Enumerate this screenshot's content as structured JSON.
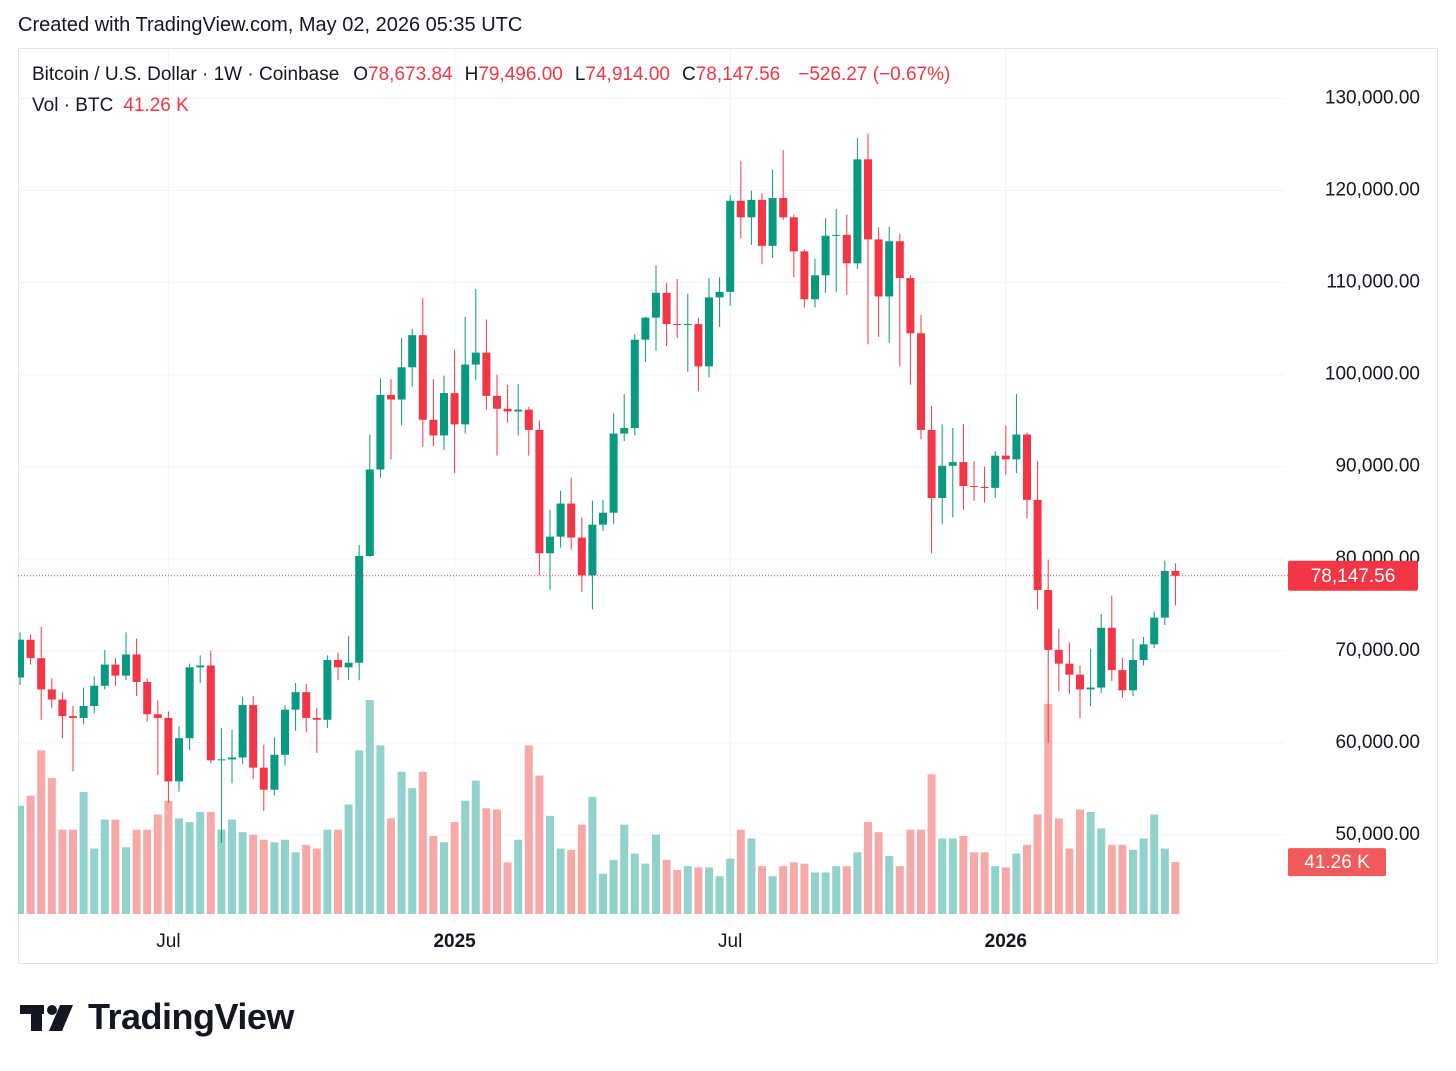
{
  "created_note": "Created with TradingView.com, May 02, 2026 05:35 UTC",
  "chart_data": {
    "type": "candlestick",
    "symbol": "Bitcoin / U.S. Dollar · 1W · Coinbase",
    "ohlc_labels": [
      {
        "prefix": "O",
        "label": "78,673.84"
      },
      {
        "prefix": "H",
        "label": "79,496.00"
      },
      {
        "prefix": "L",
        "label": "74,914.00"
      },
      {
        "prefix": "C",
        "label": "78,147.56"
      }
    ],
    "change_label": "−526.27 (−0.67%)",
    "volume_title": "Vol · BTC",
    "volume_label": "41.26 K",
    "price_label": "78,147.56",
    "categories": [
      null,
      null,
      null,
      null,
      null,
      null,
      null,
      null,
      null,
      null,
      null,
      null,
      null,
      null,
      "Jul",
      null,
      null,
      null,
      null,
      null,
      null,
      null,
      null,
      null,
      null,
      null,
      null,
      null,
      null,
      null,
      null,
      null,
      null,
      null,
      null,
      null,
      null,
      null,
      null,
      null,
      null,
      "2025",
      null,
      null,
      null,
      null,
      null,
      null,
      null,
      null,
      null,
      null,
      null,
      null,
      null,
      null,
      null,
      null,
      null,
      null,
      null,
      null,
      null,
      null,
      null,
      null,
      null,
      "Jul",
      null,
      null,
      null,
      null,
      null,
      null,
      null,
      null,
      null,
      null,
      null,
      null,
      null,
      null,
      null,
      null,
      null,
      null,
      null,
      null,
      null,
      null,
      null,
      null,
      null,
      "2026",
      null,
      null,
      null,
      null,
      null,
      null,
      null,
      null,
      null,
      null,
      null,
      null,
      null,
      null,
      null,
      null
    ],
    "open": [
      67100,
      71200,
      69200,
      65800,
      64700,
      62900,
      62700,
      64000,
      66200,
      68500,
      67300,
      69600,
      66600,
      63100,
      62700,
      55800,
      60500,
      68200,
      68400,
      58100,
      58200,
      58400,
      64100,
      57300,
      54900,
      58700,
      63600,
      65500,
      62700,
      62500,
      69000,
      68200,
      68700,
      80300,
      89700,
      97800,
      97300,
      100800,
      104300,
      95100,
      93400,
      98000,
      94600,
      101100,
      102400,
      97700,
      96300,
      96000,
      96200,
      94000,
      80600,
      82400,
      86000,
      82300,
      78200,
      83700,
      85000,
      93600,
      94200,
      103800,
      106200,
      108900,
      105500,
      105400,
      105500,
      100900,
      108400,
      109000,
      118900,
      117100,
      119000,
      114000,
      119200,
      117100,
      113400,
      108200,
      110800,
      115100,
      115200,
      112100,
      123400,
      114700,
      108500,
      114500,
      110500,
      104500,
      94000,
      86600,
      90100,
      90500,
      87900,
      87800,
      87700,
      91200,
      90800,
      93500,
      86400,
      76600,
      70100,
      68600,
      67400,
      65800,
      66000,
      72500,
      67900,
      65700,
      69000,
      70700,
      73600,
      78673.84
    ],
    "high": [
      72000,
      71800,
      72600,
      67000,
      65500,
      64000,
      66000,
      67200,
      70100,
      69200,
      72000,
      71300,
      67000,
      64600,
      63400,
      61800,
      68600,
      69500,
      70000,
      61600,
      61400,
      65000,
      65100,
      59800,
      60600,
      64100,
      66500,
      66400,
      63800,
      69500,
      69800,
      71600,
      81500,
      93500,
      99600,
      99500,
      104000,
      105000,
      108300,
      99500,
      99900,
      102700,
      106300,
      109300,
      106000,
      100000,
      98900,
      99000,
      96500,
      95000,
      85300,
      87400,
      88800,
      84500,
      86300,
      86400,
      95800,
      97900,
      104400,
      106300,
      111900,
      110000,
      110400,
      108800,
      106200,
      110500,
      110600,
      119500,
      123200,
      120000,
      119700,
      122300,
      124400,
      117400,
      113600,
      112600,
      117000,
      118000,
      117400,
      125700,
      126200,
      116000,
      116100,
      115300,
      110800,
      106500,
      96600,
      94600,
      94200,
      94600,
      90600,
      90000,
      91700,
      94500,
      97900,
      93700,
      90600,
      79900,
      72400,
      70900,
      68400,
      70200,
      74000,
      76000,
      69200,
      71300,
      71500,
      74300,
      79800,
      79496
    ],
    "low": [
      66300,
      68500,
      62500,
      63800,
      60500,
      56900,
      62000,
      63200,
      65800,
      66200,
      66800,
      65100,
      62300,
      56500,
      53500,
      54700,
      59200,
      66500,
      57800,
      49100,
      55600,
      57700,
      56100,
      52600,
      54300,
      57500,
      61300,
      61200,
      58900,
      61600,
      66800,
      66800,
      66800,
      80200,
      88800,
      90800,
      94500,
      98700,
      92200,
      92200,
      91800,
      89300,
      93600,
      99400,
      96200,
      91200,
      94800,
      93400,
      91200,
      78200,
      76600,
      81200,
      81000,
      76400,
      74500,
      83000,
      83800,
      92800,
      93400,
      101400,
      102600,
      103100,
      104000,
      100300,
      98200,
      99700,
      105200,
      107500,
      114800,
      114100,
      112000,
      112700,
      116800,
      110600,
      107300,
      107300,
      108900,
      109000,
      108700,
      111500,
      103300,
      104100,
      103500,
      100900,
      98900,
      93000,
      80600,
      83800,
      84500,
      85300,
      86300,
      86100,
      86600,
      89100,
      89300,
      84400,
      74500,
      60000,
      65600,
      65300,
      62700,
      64000,
      65400,
      66700,
      64900,
      65100,
      68400,
      70300,
      72800,
      74914
    ],
    "close": [
      71200,
      69200,
      65800,
      64700,
      62900,
      62700,
      64000,
      66200,
      68500,
      67300,
      69600,
      66600,
      63100,
      62700,
      55800,
      60500,
      68200,
      68400,
      58100,
      58200,
      58400,
      64100,
      57300,
      54900,
      58700,
      63600,
      65500,
      62700,
      62500,
      69000,
      68200,
      68700,
      80300,
      89700,
      97800,
      97300,
      100800,
      104300,
      95100,
      93400,
      98000,
      94600,
      101100,
      102400,
      97700,
      96300,
      96000,
      96200,
      94000,
      80600,
      82400,
      86000,
      82300,
      78200,
      83700,
      85000,
      93600,
      94200,
      103800,
      106200,
      108900,
      105500,
      105400,
      105500,
      100900,
      108400,
      109000,
      118900,
      117100,
      119000,
      114000,
      119200,
      117100,
      113400,
      108200,
      110800,
      115100,
      115200,
      112100,
      123400,
      114700,
      108500,
      114500,
      110500,
      104500,
      94000,
      86600,
      90100,
      90500,
      87900,
      87800,
      87700,
      91200,
      90800,
      93500,
      86400,
      76600,
      70100,
      68600,
      67400,
      65800,
      66000,
      72500,
      67900,
      65700,
      69000,
      70700,
      73600,
      78673.84,
      78147.56
    ],
    "volume": [
      86,
      94,
      130,
      108,
      67,
      67,
      97,
      52,
      75,
      75,
      53,
      67,
      67,
      79,
      90,
      76,
      73,
      81,
      81,
      67,
      75,
      65,
      63,
      59,
      57,
      59,
      49,
      55,
      52,
      67,
      67,
      87,
      130,
      170,
      134,
      76,
      113,
      100,
      113,
      62,
      57,
      73,
      90,
      106,
      84,
      83,
      41,
      59,
      134,
      110,
      78,
      52,
      51,
      71,
      93,
      32,
      43,
      71,
      48,
      40,
      63,
      43,
      35,
      38,
      37,
      37,
      30,
      44,
      67,
      60,
      38,
      30,
      38,
      41,
      40,
      33,
      33,
      38,
      38,
      49,
      73,
      65,
      46,
      38,
      67,
      67,
      111,
      60,
      60,
      62,
      49,
      49,
      38,
      37,
      48,
      55,
      79,
      167,
      76,
      52,
      83,
      81,
      68,
      55,
      55,
      51,
      60,
      79,
      52,
      41.26
    ],
    "up_color": "#089981",
    "down_color": "#f23645",
    "volume_up_color": "#92d2cc",
    "volume_down_color": "#f7a9a7",
    "ylim": [
      40200,
      135500
    ],
    "yticks": [
      {
        "value": 50000,
        "label": "50,000.00"
      },
      {
        "value": 60000,
        "label": "60,000.00"
      },
      {
        "value": 70000,
        "label": "70,000.00"
      },
      {
        "value": 80000,
        "label": "80,000.00"
      },
      {
        "value": 90000,
        "label": "90,000.00"
      },
      {
        "value": 100000,
        "label": "100,000.00"
      },
      {
        "value": 110000,
        "label": "110,000.00"
      },
      {
        "value": 120000,
        "label": "120,000.00"
      },
      {
        "value": 130000,
        "label": "130,000.00"
      }
    ],
    "volume_ylim": [
      0,
      290
    ],
    "grid": true
  },
  "footer": {
    "brand": "TradingView"
  }
}
